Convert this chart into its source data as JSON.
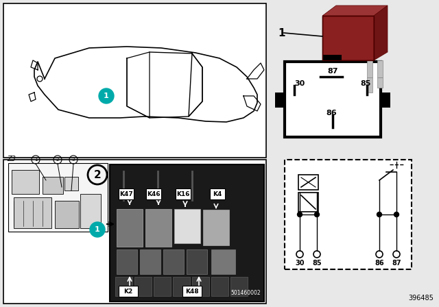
{
  "bg_color": "#e8e8e8",
  "white": "#ffffff",
  "black": "#000000",
  "teal": "#00aaaa",
  "dark_gray": "#1a1a1a",
  "part_number": "396485",
  "relay_photo_color": "#8B2020",
  "fuse_box_label": "501460002",
  "z3_label": "Z3",
  "label_1": "1",
  "label_2": "2",
  "relay_labels_top": [
    "K47",
    "K46",
    "K16",
    "K4"
  ],
  "relay_labels_bot": [
    "K2",
    "K48"
  ],
  "pin_labels": [
    "87",
    "30",
    "85",
    "86"
  ],
  "schematic_pins": [
    "30",
    "85",
    "86",
    "87"
  ]
}
